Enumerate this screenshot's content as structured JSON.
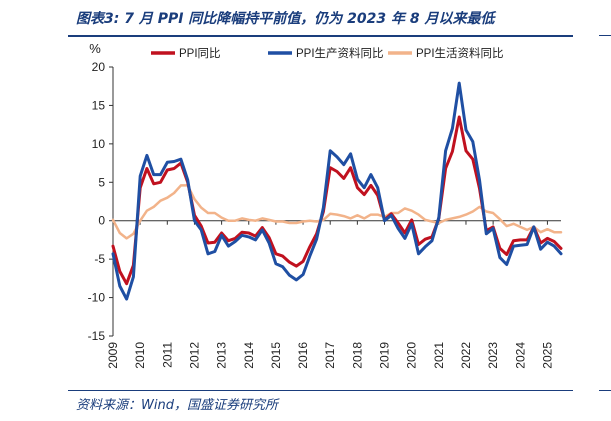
{
  "header": {
    "title": "图表3:  7 月 PPI 同比降幅持平前值，仍为 2023 年 8 月以来最低"
  },
  "footer": {
    "source": "资料来源：Wind，国盛证券研究所"
  },
  "colors": {
    "accent": "#1a3d7c",
    "ppi": "#c0111f",
    "production": "#1f4fa3",
    "living": "#f2b38a"
  },
  "chart_data": {
    "type": "line",
    "title": "",
    "xlabel": "",
    "ylabel": "%",
    "ylim": [
      -15,
      20
    ],
    "yticks": [
      -15,
      -10,
      -5,
      0,
      5,
      10,
      15,
      20
    ],
    "xlim": [
      "2009-01",
      "2025-07"
    ],
    "xticks": [
      "2009",
      "2010",
      "2011",
      "2012",
      "2013",
      "2014",
      "2015",
      "2016",
      "2017",
      "2018",
      "2019",
      "2020",
      "2021",
      "2022",
      "2023",
      "2024",
      "2025"
    ],
    "grid": false,
    "legend": "top",
    "x": [
      "2009-01",
      "2009-04",
      "2009-07",
      "2009-10",
      "2010-01",
      "2010-04",
      "2010-07",
      "2010-10",
      "2011-01",
      "2011-04",
      "2011-07",
      "2011-10",
      "2012-01",
      "2012-04",
      "2012-07",
      "2012-10",
      "2013-01",
      "2013-04",
      "2013-07",
      "2013-10",
      "2014-01",
      "2014-04",
      "2014-07",
      "2014-10",
      "2015-01",
      "2015-04",
      "2015-07",
      "2015-10",
      "2016-01",
      "2016-04",
      "2016-07",
      "2016-10",
      "2017-01",
      "2017-04",
      "2017-07",
      "2017-10",
      "2018-01",
      "2018-04",
      "2018-07",
      "2018-10",
      "2019-01",
      "2019-04",
      "2019-07",
      "2019-10",
      "2020-01",
      "2020-04",
      "2020-07",
      "2020-10",
      "2021-01",
      "2021-04",
      "2021-07",
      "2021-10",
      "2022-01",
      "2022-04",
      "2022-07",
      "2022-10",
      "2023-01",
      "2023-04",
      "2023-07",
      "2023-10",
      "2024-01",
      "2024-04",
      "2024-07",
      "2024-10",
      "2025-01",
      "2025-04",
      "2025-07"
    ],
    "series": [
      {
        "name": "PPI同比",
        "color": "#c0111f",
        "values": [
          -3.3,
          -6.6,
          -8.2,
          -5.8,
          4.3,
          6.8,
          4.8,
          5.0,
          6.6,
          6.8,
          7.5,
          5.0,
          0.7,
          -0.7,
          -2.9,
          -2.8,
          -1.6,
          -2.6,
          -2.3,
          -1.5,
          -1.6,
          -2.0,
          -0.9,
          -2.2,
          -4.3,
          -4.6,
          -5.4,
          -5.9,
          -5.3,
          -3.4,
          -1.7,
          1.2,
          6.9,
          6.4,
          5.5,
          6.9,
          4.3,
          3.4,
          4.6,
          3.3,
          0.1,
          0.9,
          -0.3,
          -1.6,
          0.1,
          -3.1,
          -2.4,
          -2.1,
          0.3,
          6.8,
          9.0,
          13.5,
          9.1,
          8.0,
          4.2,
          -1.3,
          -0.8,
          -3.6,
          -4.4,
          -2.6,
          -2.5,
          -2.5,
          -0.8,
          -2.9,
          -2.3,
          -2.7,
          -3.6
        ]
      },
      {
        "name": "PPI生产资料同比",
        "color": "#1f4fa3",
        "values": [
          -4.3,
          -8.5,
          -10.2,
          -7.3,
          5.8,
          8.5,
          6.0,
          6.0,
          7.6,
          7.7,
          8.0,
          5.3,
          0.0,
          -1.2,
          -4.3,
          -4.0,
          -1.9,
          -3.3,
          -2.7,
          -1.9,
          -2.1,
          -2.5,
          -1.2,
          -2.9,
          -5.6,
          -6.0,
          -7.1,
          -7.7,
          -7.0,
          -4.6,
          -2.4,
          1.7,
          9.1,
          8.3,
          7.3,
          8.7,
          5.4,
          4.3,
          6.0,
          4.3,
          0.0,
          0.7,
          -1.0,
          -2.3,
          -0.4,
          -4.3,
          -3.4,
          -2.6,
          0.4,
          9.1,
          12.0,
          17.9,
          11.8,
          10.3,
          5.3,
          -1.7,
          -1.0,
          -4.8,
          -5.7,
          -3.3,
          -3.2,
          -3.1,
          -0.8,
          -3.7,
          -2.8,
          -3.3,
          -4.3
        ]
      },
      {
        "name": "PPI生活资料同比",
        "color": "#f2b38a",
        "values": [
          0.1,
          -1.6,
          -2.3,
          -1.7,
          0.0,
          1.3,
          1.8,
          2.6,
          3.0,
          3.6,
          4.6,
          4.6,
          2.8,
          1.7,
          1.0,
          1.0,
          0.4,
          0.0,
          0.0,
          0.3,
          0.1,
          0.0,
          0.3,
          0.1,
          -0.1,
          -0.1,
          -0.3,
          -0.3,
          -0.1,
          0.0,
          -0.1,
          0.1,
          0.9,
          0.8,
          0.6,
          0.3,
          0.7,
          0.3,
          0.8,
          0.8,
          0.5,
          1.0,
          1.0,
          1.6,
          1.3,
          0.8,
          0.1,
          -0.1,
          -0.3,
          0.1,
          0.3,
          0.5,
          0.8,
          1.2,
          1.8,
          1.2,
          1.0,
          0.2,
          -0.7,
          -0.4,
          -0.8,
          -1.2,
          -0.8,
          -1.5,
          -1.1,
          -1.5,
          -1.5
        ]
      }
    ]
  }
}
